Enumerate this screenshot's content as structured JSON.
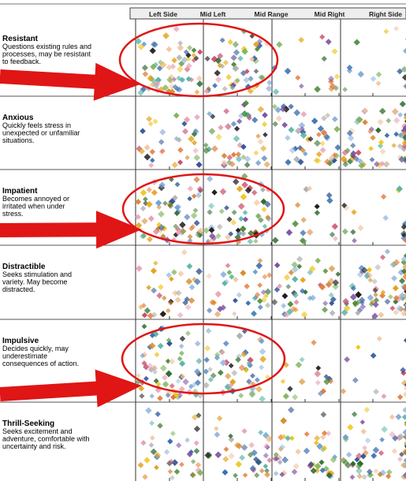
{
  "chart_data": {
    "type": "scatter",
    "columns": [
      "Left Side",
      "Mid Left",
      "Mid Range",
      "Mid Right",
      "Right Side"
    ],
    "rows": [
      {
        "title": "Resistant",
        "description": [
          "Questions existing rules and",
          "processes, may be resistant",
          "to feedback."
        ],
        "highlighted": true,
        "density": [
          1.0,
          0.75,
          0.25,
          0.15,
          0.1
        ]
      },
      {
        "title": "Anxious",
        "description": [
          "Quickly feels stress in",
          "unexpected or unfamiliar",
          "situations."
        ],
        "highlighted": false,
        "density": [
          0.5,
          0.7,
          0.75,
          0.8,
          0.4
        ]
      },
      {
        "title": "Impatient",
        "description": [
          "Becomes annoyed or",
          "irritated when under",
          "stress."
        ],
        "highlighted": true,
        "density": [
          1.0,
          0.85,
          0.25,
          0.15,
          0.1
        ]
      },
      {
        "title": "Distractible",
        "description": [
          "Seeks stimulation and",
          "variety. May become",
          "distracted."
        ],
        "highlighted": false,
        "density": [
          0.55,
          0.55,
          0.7,
          0.85,
          0.45
        ]
      },
      {
        "title": "Impulsive",
        "description": [
          "Decides quickly, may",
          "underestimate",
          "consequences of action."
        ],
        "highlighted": true,
        "density": [
          1.0,
          0.8,
          0.25,
          0.15,
          0.1
        ]
      },
      {
        "title": "Thrill-Seeking",
        "description": [
          "Seeks excitement and",
          "adventure, comfortable with",
          "uncertainty and risk."
        ],
        "highlighted": false,
        "density": [
          0.55,
          0.6,
          0.65,
          0.7,
          0.4
        ]
      }
    ],
    "marker_colors": [
      "#3a6fb0",
      "#2f5596",
      "#6c9bd1",
      "#9dbde0",
      "#4e8c3a",
      "#7fb35a",
      "#2d6a2d",
      "#e3a21a",
      "#f0c419",
      "#d98c2e",
      "#c94f6d",
      "#e8a0b4",
      "#f2c6a0",
      "#e07b39",
      "#5bb5a8",
      "#1b1b1b",
      "#7a4fa0",
      "#b0b0b0"
    ],
    "annotation_color": "#e01515"
  }
}
